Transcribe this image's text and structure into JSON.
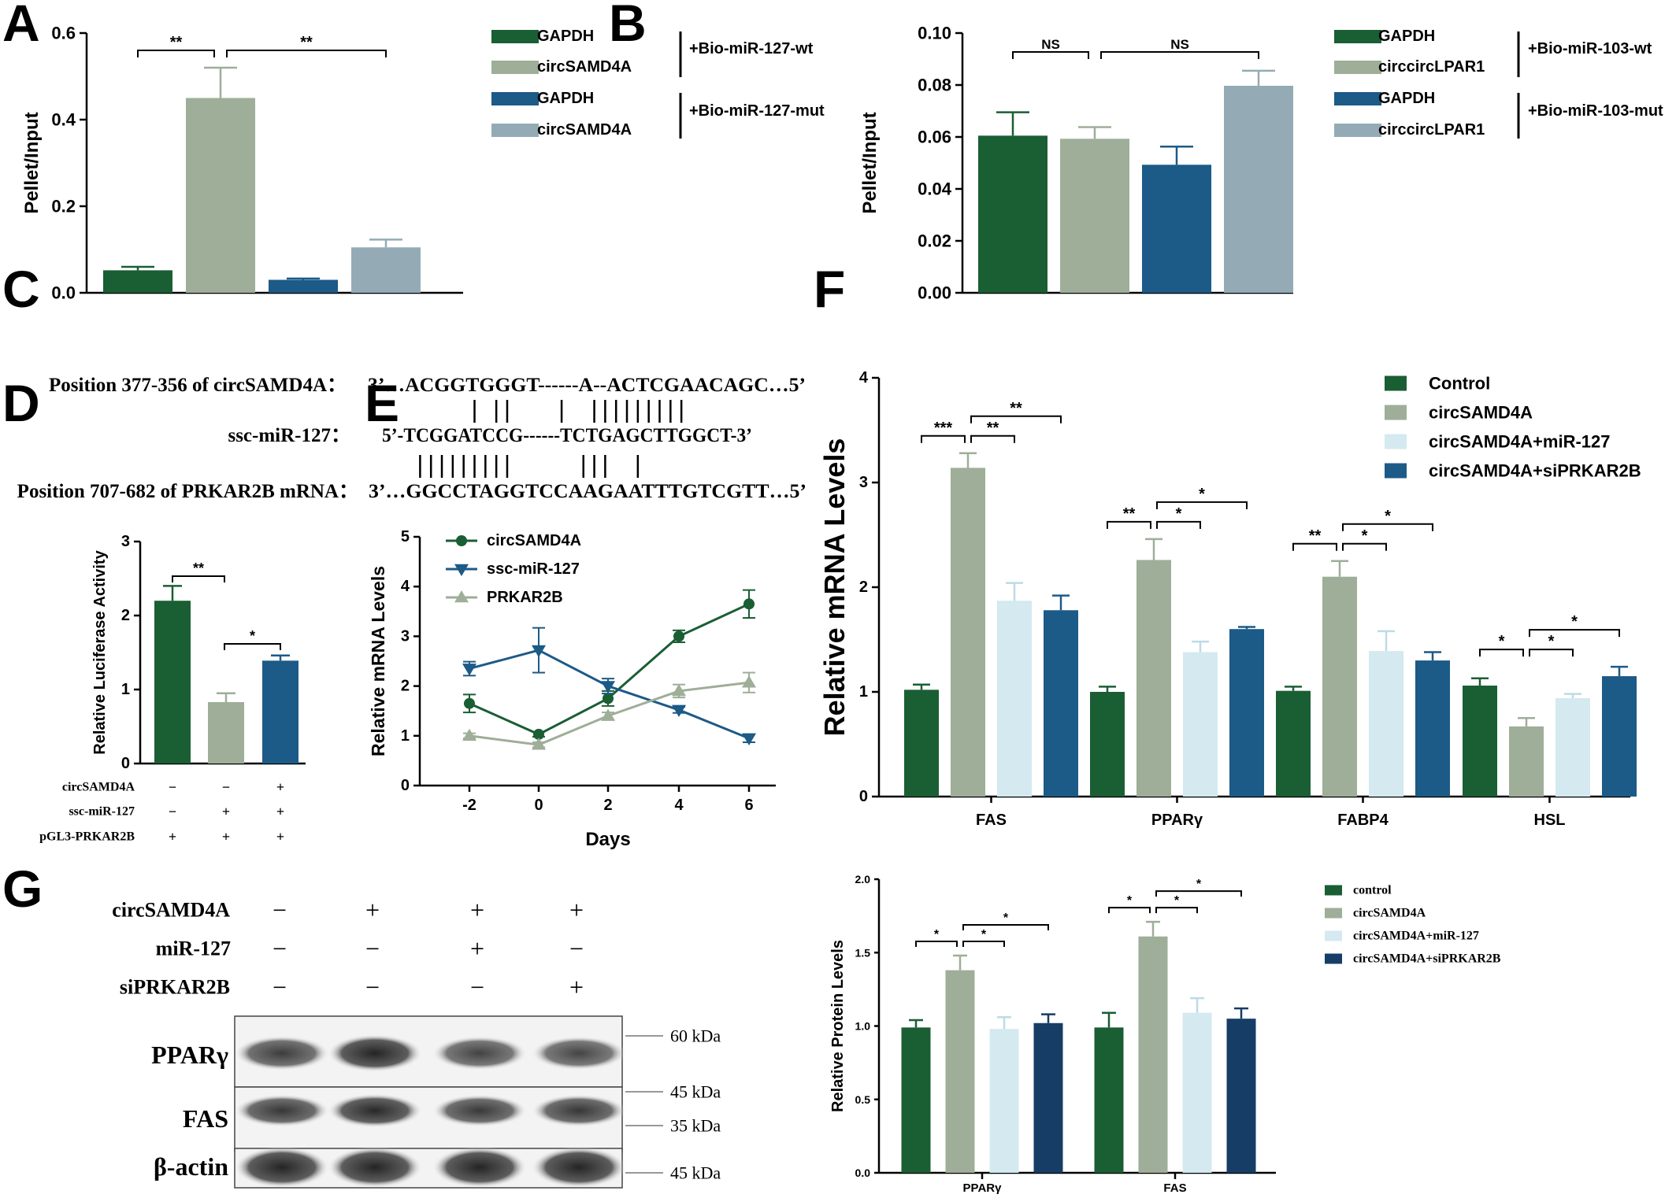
{
  "colors": {
    "dark_green": "#1a5e34",
    "sage": "#9eae98",
    "dark_blue": "#1c5a87",
    "grey_blue": "#94abb5",
    "light_blue": "#d4e9f0",
    "navy": "#163d66",
    "axis": "#000000"
  },
  "panel_letters": [
    "A",
    "B",
    "C",
    "D",
    "E",
    "F",
    "G"
  ],
  "chart_data": [
    {
      "id": "A",
      "type": "bar",
      "ylabel": "Pellet/Input",
      "ylim": [
        0,
        0.6
      ],
      "yticks": [
        0.0,
        0.2,
        0.4,
        0.6
      ],
      "ytick_labels": [
        "0.0",
        "0.2",
        "0.4",
        "0.6"
      ],
      "series": [
        {
          "name": "GAPDH",
          "value": 0.052,
          "error": 0.008,
          "color": "#1a5e34"
        },
        {
          "name": "circSAMD4A",
          "value": 0.45,
          "error": 0.07,
          "color": "#9eae98"
        },
        {
          "name": "GAPDH",
          "value": 0.03,
          "error": 0.003,
          "color": "#1c5a87"
        },
        {
          "name": "circSAMD4A",
          "value": 0.105,
          "error": 0.018,
          "color": "#94abb5"
        }
      ],
      "legend_groups": [
        "+Bio-miR-127-wt",
        "+Bio-miR-127-mut"
      ],
      "significance": [
        {
          "from": 0,
          "to": 1,
          "label": "**"
        },
        {
          "from": 1,
          "to": 3,
          "label": "**"
        }
      ]
    },
    {
      "id": "B",
      "type": "bar",
      "ylabel": "Pellet/Input",
      "ylim": [
        0,
        0.1
      ],
      "yticks": [
        0.0,
        0.02,
        0.04,
        0.06,
        0.08,
        0.1
      ],
      "ytick_labels": [
        "0.00",
        "0.02",
        "0.04",
        "0.06",
        "0.08",
        "0.10"
      ],
      "series": [
        {
          "name": "GAPDH",
          "value": 0.0605,
          "error": 0.009,
          "color": "#1a5e34"
        },
        {
          "name": "circcircLPAR1",
          "value": 0.0593,
          "error": 0.0045,
          "color": "#9eae98"
        },
        {
          "name": "GAPDH",
          "value": 0.0493,
          "error": 0.007,
          "color": "#1c5a87"
        },
        {
          "name": "circcircLPAR1",
          "value": 0.0797,
          "error": 0.0058,
          "color": "#94abb5"
        }
      ],
      "legend_groups": [
        "+Bio-miR-103-wt",
        "+Bio-miR-103-mut"
      ],
      "significance": [
        {
          "from": 0,
          "to": 1,
          "label": "NS"
        },
        {
          "from": 1,
          "to": 3,
          "label": "NS"
        }
      ]
    },
    {
      "id": "D",
      "type": "bar",
      "ylabel": "Relative  Luciferase Activity",
      "ylim": [
        0,
        3
      ],
      "yticks": [
        0,
        1,
        2,
        3
      ],
      "ytick_labels": [
        "0",
        "1",
        "2",
        "3"
      ],
      "series": [
        {
          "value": 2.2,
          "error": 0.2,
          "color": "#1a5e34"
        },
        {
          "value": 0.83,
          "error": 0.12,
          "color": "#9eae98"
        },
        {
          "value": 1.39,
          "error": 0.07,
          "color": "#1c5a87"
        }
      ],
      "significance": [
        {
          "from": 0,
          "to": 1,
          "label": "**"
        },
        {
          "from": 1,
          "to": 2,
          "label": "*"
        }
      ],
      "conditions": [
        {
          "label": "circSAMD4A",
          "marks": [
            "−",
            "−",
            "+"
          ]
        },
        {
          "label": "ssc-miR-127",
          "marks": [
            "−",
            "+",
            "+"
          ]
        },
        {
          "label": "pGL3-PRKAR2B",
          "marks": [
            "+",
            "+",
            "+"
          ]
        }
      ]
    },
    {
      "id": "E",
      "type": "line",
      "xlabel": "Days",
      "ylabel": "Relative  mRNA Levels",
      "x": [
        -2,
        0,
        2,
        4,
        6
      ],
      "xtick_labels": [
        "-2",
        "0",
        "2",
        "4",
        "6"
      ],
      "ylim": [
        0,
        5
      ],
      "yticks": [
        0,
        1,
        2,
        3,
        4,
        5
      ],
      "ytick_labels": [
        "0",
        "1",
        "2",
        "3",
        "4",
        "5"
      ],
      "series": [
        {
          "name": "circSAMD4A",
          "values": [
            1.65,
            1.03,
            1.75,
            3.0,
            3.65
          ],
          "errors": [
            0.18,
            0.05,
            0.15,
            0.12,
            0.28
          ],
          "color": "#1a5e34",
          "marker": "circle"
        },
        {
          "name": "ssc-miR-127",
          "values": [
            2.35,
            2.72,
            2.0,
            1.52,
            0.95
          ],
          "errors": [
            0.14,
            0.45,
            0.15,
            0.06,
            0.08
          ],
          "color": "#1c5a87",
          "marker": "triangle-down"
        },
        {
          "name": "PRKAR2B",
          "values": [
            1.0,
            0.82,
            1.4,
            1.9,
            2.07
          ],
          "errors": [
            0.05,
            0.05,
            0.07,
            0.13,
            0.2
          ],
          "color": "#9eae98",
          "marker": "triangle-up"
        }
      ]
    },
    {
      "id": "F",
      "type": "bar",
      "ylabel": "Relative  mRNA Levels",
      "ylim": [
        0,
        4
      ],
      "yticks": [
        0,
        1,
        2,
        3,
        4
      ],
      "ytick_labels": [
        "0",
        "1",
        "2",
        "3",
        "4"
      ],
      "categories": [
        "FAS",
        "PPARγ",
        "FABP4",
        "HSL"
      ],
      "series": [
        {
          "name": "Control",
          "color": "#1a5e34",
          "values": [
            1.02,
            1.0,
            1.01,
            1.06
          ],
          "errors": [
            0.05,
            0.05,
            0.04,
            0.07
          ]
        },
        {
          "name": "circSAMD4A",
          "color": "#9eae98",
          "values": [
            3.14,
            2.26,
            2.1,
            0.67
          ],
          "errors": [
            0.14,
            0.2,
            0.15,
            0.08
          ]
        },
        {
          "name": "circSAMD4A+miR-127",
          "color": "#d4e9f0",
          "values": [
            1.87,
            1.38,
            1.39,
            0.94
          ],
          "errors": [
            0.17,
            0.1,
            0.19,
            0.04
          ]
        },
        {
          "name": "circSAMD4A+siPRKAR2B",
          "color": "#1c5a87",
          "values": [
            1.78,
            1.6,
            1.3,
            1.15
          ],
          "errors": [
            0.14,
            0.02,
            0.08,
            0.09
          ]
        }
      ],
      "significance": [
        {
          "cat": 0,
          "from": 0,
          "to": 1,
          "label": "***",
          "level": 0
        },
        {
          "cat": 0,
          "from": 1,
          "to": 2,
          "label": "**",
          "level": 0
        },
        {
          "cat": 0,
          "from": 1,
          "to": 3,
          "label": "**",
          "level": 1
        },
        {
          "cat": 1,
          "from": 0,
          "to": 1,
          "label": "**",
          "level": 0
        },
        {
          "cat": 1,
          "from": 1,
          "to": 2,
          "label": "*",
          "level": 0
        },
        {
          "cat": 1,
          "from": 1,
          "to": 3,
          "label": "*",
          "level": 1
        },
        {
          "cat": 2,
          "from": 0,
          "to": 1,
          "label": "**",
          "level": 0
        },
        {
          "cat": 2,
          "from": 1,
          "to": 2,
          "label": "*",
          "level": 0
        },
        {
          "cat": 2,
          "from": 1,
          "to": 3,
          "label": "*",
          "level": 1
        },
        {
          "cat": 3,
          "from": 0,
          "to": 1,
          "label": "*",
          "level": 0
        },
        {
          "cat": 3,
          "from": 1,
          "to": 2,
          "label": "*",
          "level": 0
        },
        {
          "cat": 3,
          "from": 1,
          "to": 3,
          "label": "*",
          "level": 1
        }
      ]
    },
    {
      "id": "G-chart",
      "type": "bar",
      "ylabel": "Relative  Protein Levels",
      "ylim": [
        0,
        2
      ],
      "yticks": [
        0,
        0.5,
        1,
        1.5,
        2
      ],
      "ytick_labels": [
        "0.0",
        "0.5",
        "1.0",
        "1.5",
        "2.0"
      ],
      "categories": [
        "PPARγ",
        "FAS"
      ],
      "series": [
        {
          "name": "control",
          "color": "#1a5e34",
          "values": [
            0.99,
            0.99
          ],
          "errors": [
            0.05,
            0.1
          ]
        },
        {
          "name": "circSAMD4A",
          "color": "#9eae98",
          "values": [
            1.38,
            1.61
          ],
          "errors": [
            0.1,
            0.1
          ]
        },
        {
          "name": "circSAMD4A+miR-127",
          "color": "#d4e9f0",
          "values": [
            0.98,
            1.09
          ],
          "errors": [
            0.08,
            0.1
          ]
        },
        {
          "name": "circSAMD4A+siPRKAR2B",
          "color": "#163d66",
          "values": [
            1.02,
            1.05
          ],
          "errors": [
            0.06,
            0.07
          ]
        }
      ],
      "significance": [
        {
          "cat": 0,
          "from": 0,
          "to": 1,
          "label": "*",
          "level": 0
        },
        {
          "cat": 0,
          "from": 1,
          "to": 2,
          "label": "*",
          "level": 0
        },
        {
          "cat": 0,
          "from": 1,
          "to": 3,
          "label": "*",
          "level": 1
        },
        {
          "cat": 1,
          "from": 0,
          "to": 1,
          "label": "*",
          "level": 0
        },
        {
          "cat": 1,
          "from": 1,
          "to": 2,
          "label": "*",
          "level": 0
        },
        {
          "cat": 1,
          "from": 1,
          "to": 3,
          "label": "*",
          "level": 1
        }
      ]
    }
  ],
  "panel_c": {
    "rows": [
      {
        "label": "Position 377-356 of circSAMD4A：",
        "sequence": "3’…ACGGTGGGT------A--ACTCGAACAGC…5’"
      },
      {
        "label": "ssc-miR-127：",
        "sequence": "5’-TCGGATCCG------TCTGAGCTTGGCT-3’"
      },
      {
        "label": "Position 707-682 of PRKAR2B mRNA：",
        "sequence": "3’…GGCCTAGGTCCAAGAATTTGTCGTT…5’"
      }
    ],
    "pairs_top": [
      8,
      10,
      11,
      16,
      19,
      20,
      21,
      22,
      23,
      24,
      25,
      26,
      27
    ],
    "pairs_bottom": [
      3,
      4,
      5,
      6,
      7,
      8,
      9,
      10,
      11,
      18,
      19,
      20,
      23
    ]
  },
  "panel_g": {
    "conditions": [
      {
        "label": "circSAMD4A",
        "marks": [
          "−",
          "+",
          "+",
          "+"
        ]
      },
      {
        "label": "miR-127",
        "marks": [
          "−",
          "−",
          "+",
          "−"
        ]
      },
      {
        "label": "siPRKAR2B",
        "marks": [
          "−",
          "−",
          "−",
          "+"
        ]
      }
    ],
    "blots": [
      {
        "label": "PPARγ",
        "intensity": [
          0.75,
          0.95,
          0.7,
          0.68
        ]
      },
      {
        "label": "FAS",
        "intensity": [
          0.8,
          0.92,
          0.78,
          0.8
        ]
      },
      {
        "label": "β-actin",
        "intensity": [
          0.95,
          0.95,
          0.95,
          0.95
        ]
      }
    ],
    "markers": [
      "60 kDa",
      "45 kDa",
      "35 kDa",
      "45 kDa"
    ]
  }
}
